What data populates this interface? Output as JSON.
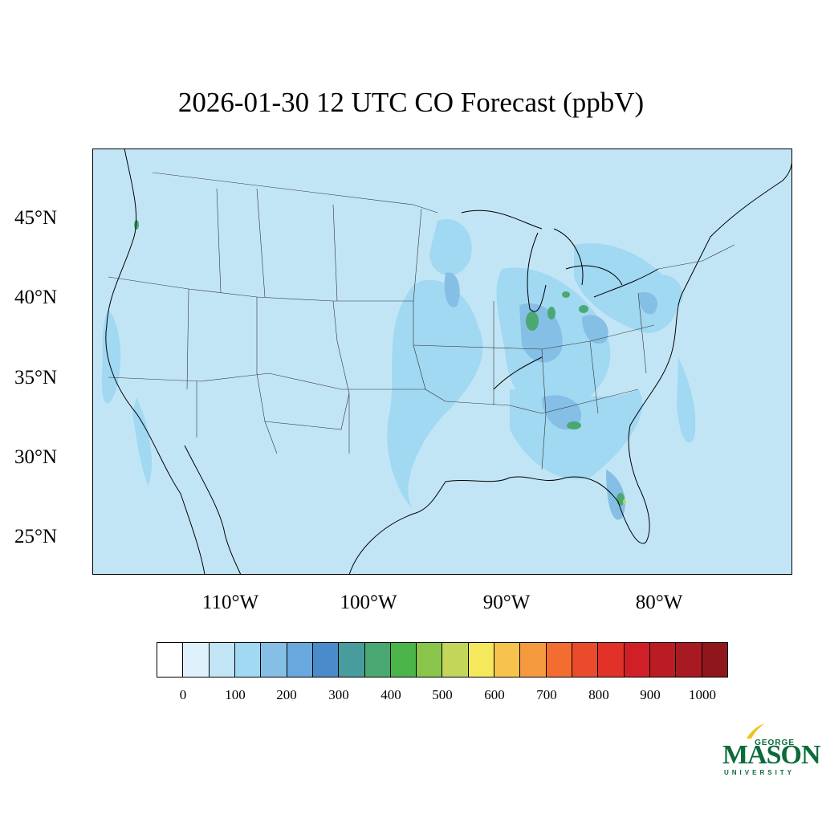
{
  "title": "2026-01-30 12 UTC CO Forecast (ppbV)",
  "map": {
    "background_color": "#c2e5f6",
    "lat_labels": [
      "45°N",
      "40°N",
      "35°N",
      "30°N",
      "25°N"
    ],
    "lon_labels": [
      "110°W",
      "100°W",
      "90°W",
      "80°W"
    ]
  },
  "colorbar": {
    "colors": [
      "#ffffff",
      "#dff1fa",
      "#c2e5f6",
      "#a1d8f2",
      "#85bfe5",
      "#69a8dc",
      "#4a8bcb",
      "#489c9d",
      "#4aa872",
      "#4bb54a",
      "#88c54a",
      "#c3d65a",
      "#f6e85d",
      "#f7c34d",
      "#f69a3f",
      "#f36d30",
      "#ea4c2b",
      "#e13129",
      "#d01f27",
      "#bb1c24",
      "#a81a22",
      "#8f171c"
    ],
    "labels": [
      "0",
      "100",
      "200",
      "300",
      "400",
      "500",
      "600",
      "700",
      "800",
      "900",
      "1000"
    ]
  },
  "logo": {
    "line1": "GEORGE",
    "line2": "MASON",
    "line3": "UNIVERSITY"
  }
}
